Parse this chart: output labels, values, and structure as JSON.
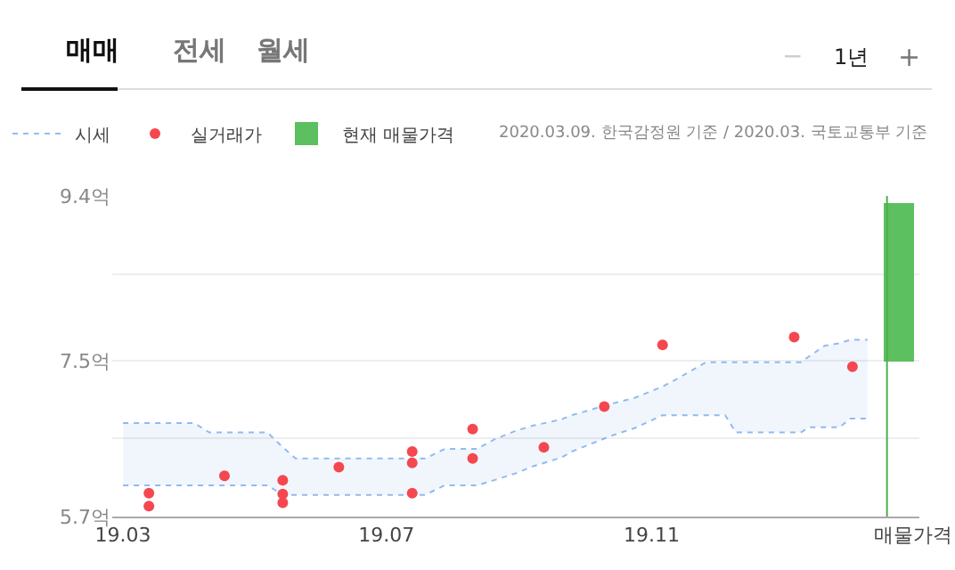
{
  "chart_data": {
    "type": "line",
    "annotations": [
      "매매",
      "전세",
      "월세",
      "−",
      "1년",
      "+",
      "2020.03.09. 한국감정원 기준 / 2020.03. 국토교통부 기준"
    ],
    "xlim": [
      "2019-02-24",
      "2020-03-04"
    ],
    "xticks": [
      {
        "value": "2019-03-01",
        "label": "19.03"
      },
      {
        "value": "2019-07-01",
        "label": "19.07"
      },
      {
        "value": "2019-11-01",
        "label": "19.11"
      },
      {
        "value": "2020-03-01",
        "label": "매물가격"
      }
    ],
    "ylim": [
      5.7,
      9.4
    ],
    "yticks": [
      {
        "value": 5.7,
        "label": "5.7억"
      },
      {
        "value": 6.6,
        "label": null
      },
      {
        "value": 7.5,
        "label": "7.5억"
      },
      {
        "value": 8.5,
        "label": null
      },
      {
        "value": 9.4,
        "label": "9.4억"
      }
    ],
    "grid": "y",
    "legend": "top left",
    "series": [
      {
        "name": "시세",
        "color": "#4d8fe6",
        "line_style": "dotted",
        "x": [
          "2019-03-01",
          "2019-04-03",
          "2019-04-10",
          "2019-05-07",
          "2019-05-14",
          "2019-05-20",
          "2019-07-19",
          "2019-07-28",
          "2019-08-12",
          "2019-08-20",
          "2019-08-30",
          "2019-09-07",
          "2019-09-20",
          "2019-09-25",
          "2019-10-13",
          "2019-10-24",
          "2019-11-06",
          "2019-11-12",
          "2019-11-26",
          "2019-12-05",
          "2019-12-10",
          "2020-01-09",
          "2020-01-13",
          "2020-01-20",
          "2020-01-27",
          "2020-02-01",
          "2020-02-09"
        ],
        "values": [
          6.78,
          6.78,
          6.67,
          6.67,
          6.5,
          6.37,
          6.37,
          6.48,
          6.48,
          6.59,
          6.69,
          6.75,
          6.82,
          6.87,
          7.0,
          7.07,
          7.2,
          7.28,
          7.48,
          7.48,
          7.48,
          7.48,
          7.55,
          7.67,
          7.7,
          7.74,
          7.74
        ],
        "upper": [
          6.78,
          6.78,
          6.67,
          6.67,
          6.5,
          6.37,
          6.37,
          6.48,
          6.48,
          6.59,
          6.69,
          6.75,
          6.82,
          6.87,
          7.0,
          7.07,
          7.2,
          7.28,
          7.48,
          7.48,
          7.48,
          7.48,
          7.55,
          7.67,
          7.7,
          7.74,
          7.74
        ],
        "lower": [
          6.06,
          6.06,
          6.06,
          6.06,
          5.95,
          5.95,
          5.95,
          6.06,
          6.06,
          6.12,
          6.2,
          6.28,
          6.38,
          6.45,
          6.63,
          6.72,
          6.87,
          6.87,
          6.87,
          6.87,
          6.67,
          6.67,
          6.73,
          6.73,
          6.73,
          6.83,
          6.83
        ]
      },
      {
        "color": "#4d8fe6",
        "line_style": "dotted",
        "x": [
          "2019-03-01",
          "2019-04-03",
          "2019-04-10",
          "2019-05-07",
          "2019-05-14",
          "2019-05-20",
          "2019-07-19",
          "2019-07-28",
          "2019-08-12",
          "2019-08-20",
          "2019-08-30",
          "2019-09-07",
          "2019-09-20",
          "2019-09-25",
          "2019-10-13",
          "2019-10-24",
          "2019-11-06",
          "2019-11-12",
          "2019-11-26",
          "2019-12-05",
          "2019-12-10",
          "2020-01-09",
          "2020-01-13",
          "2020-01-20",
          "2020-01-27",
          "2020-02-01",
          "2020-02-09"
        ],
        "values": [
          6.06,
          6.06,
          6.06,
          6.06,
          5.95,
          5.95,
          5.95,
          6.06,
          6.06,
          6.12,
          6.2,
          6.28,
          6.38,
          6.45,
          6.63,
          6.72,
          6.87,
          6.87,
          6.87,
          6.87,
          6.67,
          6.67,
          6.73,
          6.73,
          6.73,
          6.83,
          6.83
        ]
      },
      {
        "name": "실거래가",
        "type": "scatter",
        "color": "#f5474f",
        "marker": "circle",
        "x": [
          "2019-03-13",
          "2019-03-13",
          "2019-04-17",
          "2019-05-14",
          "2019-05-14",
          "2019-05-14",
          "2019-06-09",
          "2019-07-13",
          "2019-07-13",
          "2019-07-13",
          "2019-08-10",
          "2019-08-10",
          "2019-09-12",
          "2019-10-10",
          "2019-11-06",
          "2020-01-06",
          "2020-02-02"
        ],
        "values": [
          5.97,
          5.82,
          6.17,
          6.12,
          5.96,
          5.86,
          6.27,
          6.45,
          6.32,
          5.97,
          6.71,
          6.37,
          6.5,
          6.97,
          7.68,
          7.77,
          7.43
        ]
      },
      {
        "name": "현재 매물가격",
        "type": "bar",
        "color": "#5cbf60",
        "x": [
          "2020-02-24"
        ],
        "base": [
          7.48
        ],
        "values": [
          1.82
        ]
      }
    ],
    "ref_lines": [
      {
        "axis": "x",
        "value": "2020-02-18",
        "color": "#4caf50"
      }
    ]
  }
}
